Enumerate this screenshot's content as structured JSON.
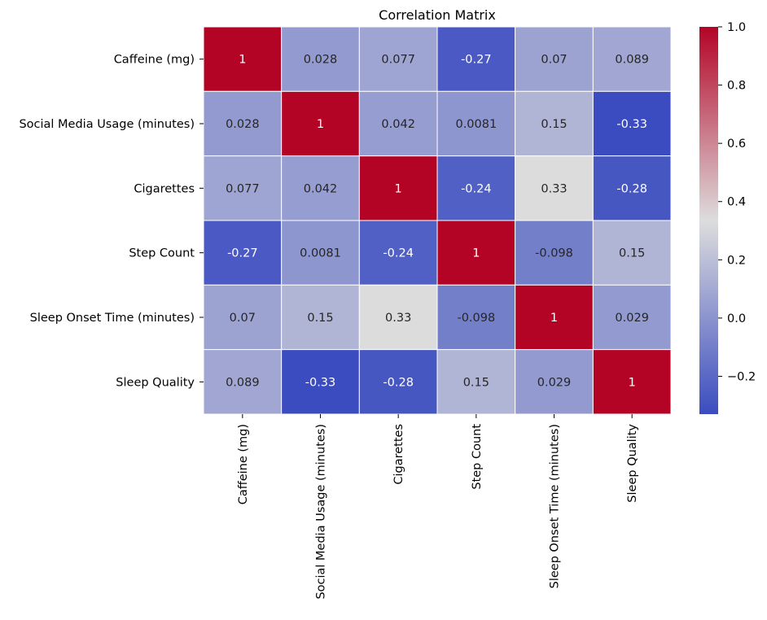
{
  "chart_data": {
    "type": "heatmap",
    "title": "Correlation Matrix",
    "xlabel": "",
    "ylabel": "",
    "rows": [
      "Caffeine (mg)",
      "Social Media Usage (minutes)",
      "Cigarettes",
      "Step Count",
      "Sleep Onset Time (minutes)",
      "Sleep Quality"
    ],
    "columns": [
      "Caffeine (mg)",
      "Social Media Usage (minutes)",
      "Cigarettes",
      "Step Count",
      "Sleep Onset Time (minutes)",
      "Sleep Quality"
    ],
    "values": [
      [
        1,
        0.028,
        0.077,
        -0.27,
        0.07,
        0.089
      ],
      [
        0.028,
        1,
        0.042,
        0.0081,
        0.15,
        -0.33
      ],
      [
        0.077,
        0.042,
        1,
        -0.24,
        0.33,
        -0.28
      ],
      [
        -0.27,
        0.0081,
        -0.24,
        1,
        -0.098,
        0.15
      ],
      [
        0.07,
        0.15,
        0.33,
        -0.098,
        1,
        0.029
      ],
      [
        0.089,
        -0.33,
        -0.28,
        0.15,
        0.029,
        1
      ]
    ],
    "cell_labels": [
      [
        "1",
        "0.028",
        "0.077",
        "-0.27",
        "0.07",
        "0.089"
      ],
      [
        "0.028",
        "1",
        "0.042",
        "0.0081",
        "0.15",
        "-0.33"
      ],
      [
        "0.077",
        "0.042",
        "1",
        "-0.24",
        "0.33",
        "-0.28"
      ],
      [
        "-0.27",
        "0.0081",
        "-0.24",
        "1",
        "-0.098",
        "0.15"
      ],
      [
        "0.07",
        "0.15",
        "0.33",
        "-0.098",
        "1",
        "0.029"
      ],
      [
        "0.089",
        "-0.33",
        "-0.28",
        "0.15",
        "0.029",
        "1"
      ]
    ],
    "colormap": "coolwarm",
    "color_stops": [
      "#3b4cc0",
      "#dddddd",
      "#b40426"
    ],
    "vmin": -0.33,
    "vmax": 1.0,
    "colorbar": {
      "ticks": [
        -0.2,
        0.0,
        0.2,
        0.4,
        0.6,
        0.8,
        1.0
      ],
      "tick_labels": [
        "−0.2",
        "0.0",
        "0.2",
        "0.4",
        "0.6",
        "0.8",
        "1.0"
      ],
      "placement": "right"
    },
    "grid": false,
    "cell_borders": "white"
  }
}
